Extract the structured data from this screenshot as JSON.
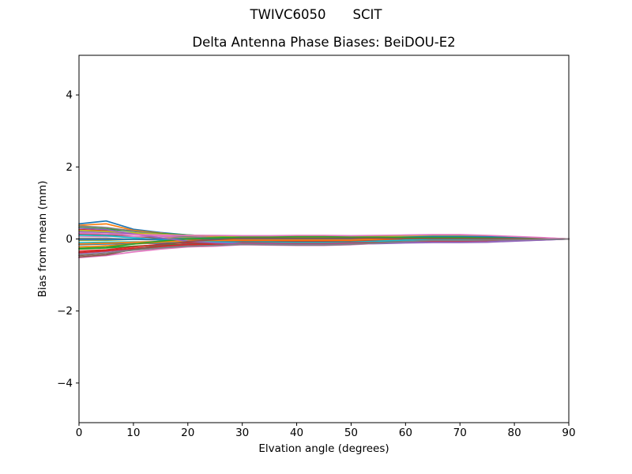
{
  "header": {
    "title_left": "TWIVC6050",
    "title_right": "SCIT"
  },
  "chart_data": {
    "type": "line",
    "title": "Delta Antenna Phase Biases: BeiDOU-E2",
    "xlabel": "Elvation angle (degrees)",
    "ylabel": "Bias from mean (mm)",
    "xlim": [
      0,
      90
    ],
    "ylim": [
      -5.1,
      5.1
    ],
    "x_ticks": [
      0,
      10,
      20,
      30,
      40,
      50,
      60,
      70,
      80,
      90
    ],
    "y_ticks": [
      -4,
      -2,
      0,
      2,
      4
    ],
    "grid": false,
    "legend": "none",
    "axis_color": "#000000",
    "background": "#ffffff",
    "x": [
      0,
      5,
      10,
      15,
      20,
      25,
      30,
      35,
      40,
      45,
      50,
      55,
      60,
      65,
      70,
      75,
      80,
      85,
      90
    ],
    "series": [
      {
        "name": "line-01",
        "color": "#1f77b4",
        "values": [
          0.42,
          0.5,
          0.27,
          0.18,
          0.11,
          0.08,
          0.05,
          0.05,
          0.06,
          0.06,
          0.05,
          0.06,
          0.07,
          0.08,
          0.08,
          0.07,
          0.04,
          0.02,
          0.0
        ]
      },
      {
        "name": "line-02",
        "color": "#ff7f0e",
        "values": [
          0.38,
          0.42,
          0.24,
          0.16,
          0.09,
          0.06,
          0.03,
          0.03,
          0.03,
          0.03,
          0.03,
          0.04,
          0.05,
          0.06,
          0.06,
          0.05,
          0.03,
          0.02,
          0.0
        ]
      },
      {
        "name": "line-03",
        "color": "#2ca02c",
        "values": [
          0.32,
          0.28,
          0.21,
          0.15,
          0.11,
          0.08,
          0.06,
          0.06,
          0.07,
          0.07,
          0.06,
          0.06,
          0.05,
          0.05,
          0.05,
          0.04,
          0.03,
          0.01,
          0.0
        ]
      },
      {
        "name": "line-04",
        "color": "#d62728",
        "values": [
          0.26,
          0.23,
          0.15,
          0.08,
          0.03,
          0.0,
          -0.02,
          -0.02,
          -0.02,
          -0.02,
          -0.02,
          -0.01,
          0.01,
          0.02,
          0.02,
          0.02,
          0.01,
          0.01,
          0.0
        ]
      },
      {
        "name": "line-05",
        "color": "#9467bd",
        "values": [
          0.2,
          0.18,
          0.13,
          0.08,
          0.05,
          0.03,
          0.02,
          0.02,
          0.02,
          0.02,
          0.02,
          0.03,
          0.03,
          0.04,
          0.04,
          0.03,
          0.02,
          0.01,
          0.0
        ]
      },
      {
        "name": "line-06",
        "color": "#8c564b",
        "values": [
          0.14,
          0.12,
          0.07,
          0.03,
          -0.01,
          -0.03,
          -0.04,
          -0.04,
          -0.05,
          -0.05,
          -0.04,
          -0.03,
          -0.01,
          0.0,
          0.0,
          0.0,
          0.0,
          0.0,
          0.0
        ]
      },
      {
        "name": "line-07",
        "color": "#e377c2",
        "values": [
          0.08,
          0.07,
          0.07,
          0.08,
          0.08,
          0.09,
          0.08,
          0.08,
          0.09,
          0.09,
          0.08,
          0.09,
          0.09,
          0.1,
          0.1,
          0.09,
          0.06,
          0.03,
          0.0
        ]
      },
      {
        "name": "line-08",
        "color": "#7f7f7f",
        "values": [
          0.02,
          0.02,
          -0.01,
          -0.03,
          -0.05,
          -0.06,
          -0.06,
          -0.06,
          -0.07,
          -0.07,
          -0.06,
          -0.05,
          -0.03,
          -0.02,
          -0.02,
          -0.02,
          -0.01,
          -0.01,
          0.0
        ]
      },
      {
        "name": "line-09",
        "color": "#bcbd22",
        "values": [
          -0.04,
          -0.04,
          -0.01,
          0.01,
          0.03,
          0.04,
          0.04,
          0.04,
          0.05,
          0.05,
          0.04,
          0.05,
          0.05,
          0.06,
          0.06,
          0.05,
          0.03,
          0.02,
          0.0
        ]
      },
      {
        "name": "line-10",
        "color": "#17becf",
        "values": [
          -0.1,
          -0.09,
          -0.08,
          -0.08,
          -0.09,
          -0.09,
          -0.08,
          -0.08,
          -0.09,
          -0.09,
          -0.08,
          -0.07,
          -0.05,
          -0.04,
          -0.04,
          -0.03,
          -0.02,
          -0.01,
          0.0
        ]
      },
      {
        "name": "line-11",
        "color": "#1f77b4",
        "values": [
          -0.16,
          -0.14,
          -0.13,
          -0.12,
          -0.11,
          -0.11,
          -0.1,
          -0.11,
          -0.12,
          -0.12,
          -0.1,
          -0.09,
          -0.07,
          -0.06,
          -0.06,
          -0.05,
          -0.03,
          -0.02,
          0.0
        ]
      },
      {
        "name": "line-12",
        "color": "#ff7f0e",
        "values": [
          -0.22,
          -0.19,
          -0.14,
          -0.09,
          -0.05,
          -0.03,
          -0.01,
          -0.01,
          -0.01,
          -0.01,
          -0.01,
          0.0,
          0.02,
          0.03,
          0.03,
          0.03,
          0.02,
          0.01,
          0.0
        ]
      },
      {
        "name": "line-13",
        "color": "#2ca02c",
        "values": [
          -0.28,
          -0.25,
          -0.2,
          -0.17,
          -0.15,
          -0.14,
          -0.12,
          -0.13,
          -0.14,
          -0.14,
          -0.12,
          -0.11,
          -0.09,
          -0.08,
          -0.08,
          -0.07,
          -0.04,
          -0.02,
          0.0
        ]
      },
      {
        "name": "line-14",
        "color": "#d62728",
        "values": [
          -0.34,
          -0.3,
          -0.22,
          -0.15,
          -0.1,
          -0.07,
          -0.05,
          -0.05,
          -0.06,
          -0.06,
          -0.05,
          -0.03,
          -0.01,
          0.01,
          0.01,
          0.01,
          0.01,
          0.0,
          0.0
        ]
      },
      {
        "name": "line-15",
        "color": "#9467bd",
        "values": [
          -0.4,
          -0.35,
          -0.28,
          -0.23,
          -0.19,
          -0.17,
          -0.14,
          -0.15,
          -0.16,
          -0.16,
          -0.14,
          -0.13,
          -0.11,
          -0.1,
          -0.1,
          -0.09,
          -0.06,
          -0.03,
          0.0
        ]
      },
      {
        "name": "line-16",
        "color": "#8c564b",
        "values": [
          -0.46,
          -0.4,
          -0.3,
          -0.21,
          -0.14,
          -0.1,
          -0.07,
          -0.07,
          -0.08,
          -0.08,
          -0.07,
          -0.06,
          -0.04,
          -0.03,
          -0.03,
          -0.03,
          -0.02,
          -0.01,
          0.0
        ]
      },
      {
        "name": "line-17",
        "color": "#e377c2",
        "values": [
          -0.52,
          -0.46,
          -0.36,
          -0.28,
          -0.22,
          -0.2,
          -0.16,
          -0.17,
          -0.18,
          -0.18,
          -0.16,
          -0.12,
          -0.08,
          -0.05,
          -0.05,
          -0.04,
          -0.03,
          -0.02,
          0.0
        ]
      },
      {
        "name": "line-18",
        "color": "#7f7f7f",
        "values": [
          0.36,
          0.32,
          0.22,
          0.13,
          0.06,
          0.03,
          0.0,
          0.0,
          0.0,
          0.0,
          0.0,
          0.02,
          0.04,
          0.05,
          0.05,
          0.04,
          0.03,
          0.02,
          0.0
        ]
      },
      {
        "name": "line-19",
        "color": "#bcbd22",
        "values": [
          0.24,
          0.21,
          0.17,
          0.13,
          0.1,
          0.09,
          0.07,
          0.07,
          0.08,
          0.08,
          0.07,
          0.08,
          0.08,
          0.09,
          0.09,
          0.08,
          0.05,
          0.03,
          0.0
        ]
      },
      {
        "name": "line-20",
        "color": "#17becf",
        "values": [
          0.1,
          0.09,
          0.03,
          -0.02,
          -0.06,
          -0.08,
          -0.09,
          -0.09,
          -0.1,
          -0.1,
          -0.09,
          -0.06,
          -0.03,
          -0.01,
          -0.01,
          -0.01,
          -0.01,
          0.0,
          0.0
        ]
      },
      {
        "name": "line-21",
        "color": "#1f77b4",
        "values": [
          -0.02,
          -0.02,
          -0.01,
          0.0,
          0.01,
          0.01,
          0.01,
          0.01,
          0.01,
          0.01,
          0.01,
          0.03,
          0.05,
          0.07,
          0.07,
          0.06,
          0.04,
          0.02,
          0.0
        ]
      },
      {
        "name": "line-22",
        "color": "#ff7f0e",
        "values": [
          -0.14,
          -0.12,
          -0.09,
          -0.07,
          -0.05,
          -0.04,
          -0.03,
          -0.03,
          -0.03,
          -0.03,
          -0.03,
          -0.01,
          0.01,
          0.02,
          0.02,
          0.02,
          0.01,
          0.01,
          0.0
        ]
      },
      {
        "name": "line-23",
        "color": "#2ca02c",
        "values": [
          -0.26,
          -0.23,
          -0.14,
          -0.06,
          0.0,
          0.03,
          0.05,
          0.05,
          0.06,
          0.06,
          0.05,
          0.05,
          0.04,
          0.04,
          0.04,
          0.03,
          0.02,
          0.01,
          0.0
        ]
      },
      {
        "name": "line-24",
        "color": "#d62728",
        "values": [
          -0.38,
          -0.33,
          -0.26,
          -0.2,
          -0.16,
          -0.14,
          -0.11,
          -0.12,
          -0.13,
          -0.13,
          -0.11,
          -0.1,
          -0.08,
          -0.07,
          -0.07,
          -0.06,
          -0.04,
          -0.02,
          0.0
        ]
      },
      {
        "name": "line-25",
        "color": "#9467bd",
        "values": [
          0.3,
          0.26,
          0.14,
          0.03,
          -0.06,
          -0.11,
          -0.13,
          -0.14,
          -0.15,
          -0.15,
          -0.13,
          -0.12,
          -0.1,
          -0.09,
          -0.09,
          -0.08,
          -0.05,
          -0.03,
          0.0
        ]
      },
      {
        "name": "line-26",
        "color": "#8c564b",
        "values": [
          -0.5,
          -0.44,
          -0.29,
          -0.17,
          -0.07,
          -0.02,
          0.02,
          0.02,
          0.02,
          0.02,
          0.02,
          0.02,
          0.01,
          0.01,
          0.01,
          0.01,
          0.01,
          0.0,
          0.0
        ]
      },
      {
        "name": "line-27",
        "color": "#e377c2",
        "values": [
          0.16,
          0.14,
          0.12,
          0.11,
          0.1,
          0.1,
          0.09,
          0.09,
          0.1,
          0.1,
          0.09,
          0.1,
          0.11,
          0.12,
          0.12,
          0.1,
          0.07,
          0.04,
          0.0
        ]
      },
      {
        "name": "line-28",
        "color": "#7f7f7f",
        "values": [
          -0.44,
          -0.39,
          -0.31,
          -0.25,
          -0.2,
          -0.18,
          -0.15,
          -0.16,
          -0.17,
          -0.17,
          -0.15,
          -0.11,
          -0.07,
          -0.04,
          -0.04,
          -0.03,
          -0.02,
          -0.01,
          0.0
        ]
      }
    ]
  }
}
